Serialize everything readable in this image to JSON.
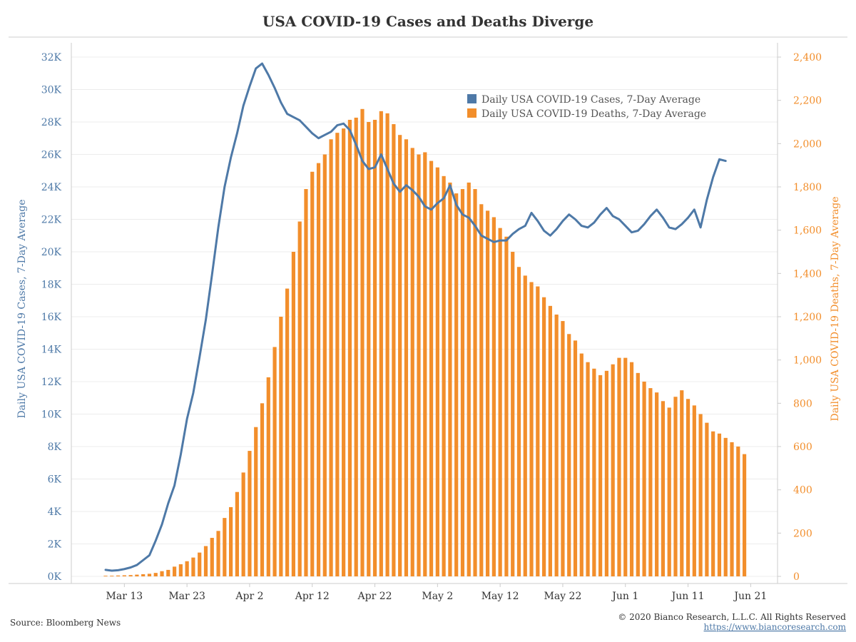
{
  "chart_data": {
    "type": "bar+line",
    "title": "USA COVID-19 Cases and Deaths Diverge",
    "ylabel_left": "Daily USA COVID-19 Cases, 7-Day Average",
    "ylabel_right": "Daily USA COVID-19 Deaths, 7-Day Average",
    "ylim_left": [
      0,
      32000
    ],
    "ylim_right": [
      0,
      2400
    ],
    "left_ticks": [
      0,
      2000,
      4000,
      6000,
      8000,
      10000,
      12000,
      14000,
      16000,
      18000,
      20000,
      22000,
      24000,
      26000,
      28000,
      30000,
      32000
    ],
    "left_tick_labels": [
      "0K",
      "2K",
      "4K",
      "6K",
      "8K",
      "10K",
      "12K",
      "14K",
      "16K",
      "18K",
      "20K",
      "22K",
      "24K",
      "26K",
      "28K",
      "30K",
      "32K"
    ],
    "right_ticks": [
      0,
      200,
      400,
      600,
      800,
      1000,
      1200,
      1400,
      1600,
      1800,
      2000,
      2200,
      2400
    ],
    "right_tick_labels": [
      "0",
      "200",
      "400",
      "600",
      "800",
      "1,000",
      "1,200",
      "1,400",
      "1,600",
      "1,800",
      "2,000",
      "2,200",
      "2,400"
    ],
    "x_start": "Mar 10",
    "x_ticks": [
      {
        "label": "Mar 13",
        "index": 3
      },
      {
        "label": "Mar 23",
        "index": 13
      },
      {
        "label": "Apr 2",
        "index": 23
      },
      {
        "label": "Apr 12",
        "index": 33
      },
      {
        "label": "Apr 22",
        "index": 43
      },
      {
        "label": "May 2",
        "index": 53
      },
      {
        "label": "May 12",
        "index": 63
      },
      {
        "label": "May 22",
        "index": 73
      },
      {
        "label": "Jun 1",
        "index": 83
      },
      {
        "label": "Jun 11",
        "index": 93
      },
      {
        "label": "Jun 21",
        "index": 103
      }
    ],
    "grid": true,
    "legend_position": "top-right",
    "series": [
      {
        "name": "Daily USA COVID-19 Cases, 7-Day Average",
        "type": "line",
        "axis": "left",
        "color": "#4e79a7",
        "start_index": 0,
        "values": [
          400,
          350,
          380,
          450,
          550,
          700,
          1000,
          1300,
          2200,
          3200,
          4500,
          5600,
          7500,
          9700,
          11300,
          13500,
          15800,
          18600,
          21500,
          24000,
          25800,
          27300,
          29000,
          30200,
          31300,
          31600,
          30900,
          30100,
          29200,
          28500,
          28300,
          28100,
          27700,
          27300,
          27000,
          27200,
          27400,
          27800,
          27900,
          27500,
          26600,
          25600,
          25100,
          25200,
          26000,
          25100,
          24200,
          23700,
          24100,
          23800,
          23400,
          22800,
          22600,
          23000,
          23300,
          24100,
          22900,
          22300,
          22100,
          21600,
          21000,
          20800,
          20600,
          20700,
          20700,
          21100,
          21400,
          21600,
          22400,
          21900,
          21300,
          21000,
          21400,
          21900,
          22300,
          22000,
          21600,
          21500,
          21800,
          22300,
          22700,
          22200,
          22000,
          21600,
          21200,
          21300,
          21700,
          22200,
          22600,
          22100,
          21500,
          21400,
          21700,
          22100,
          22600,
          21500,
          23200,
          24600,
          25700,
          25600
        ]
      },
      {
        "name": "Daily USA COVID-19 Deaths, 7-Day Average",
        "type": "bar",
        "axis": "right",
        "color": "#f28e2b",
        "start_index": 0,
        "values": [
          3,
          3,
          4,
          5,
          6,
          8,
          10,
          12,
          16,
          24,
          30,
          45,
          56,
          70,
          87,
          110,
          140,
          178,
          210,
          270,
          320,
          390,
          480,
          580,
          690,
          800,
          920,
          1060,
          1200,
          1330,
          1500,
          1640,
          1790,
          1870,
          1910,
          1950,
          2020,
          2050,
          2070,
          2110,
          2120,
          2160,
          2100,
          2110,
          2150,
          2140,
          2090,
          2040,
          2020,
          1980,
          1950,
          1960,
          1920,
          1890,
          1850,
          1820,
          1770,
          1790,
          1820,
          1790,
          1720,
          1690,
          1660,
          1610,
          1570,
          1500,
          1430,
          1390,
          1360,
          1340,
          1290,
          1250,
          1210,
          1180,
          1120,
          1090,
          1030,
          990,
          960,
          930,
          950,
          980,
          1010,
          1010,
          990,
          940,
          900,
          870,
          850,
          810,
          780,
          830,
          860,
          820,
          790,
          750,
          710,
          670,
          660,
          640,
          620,
          600,
          565
        ]
      }
    ]
  },
  "footer": {
    "source": "Source: Bloomberg News",
    "copyright": "© 2020 Bianco Research, L.L.C. All Rights Reserved",
    "link": "https://www.biancoresearch.com"
  }
}
